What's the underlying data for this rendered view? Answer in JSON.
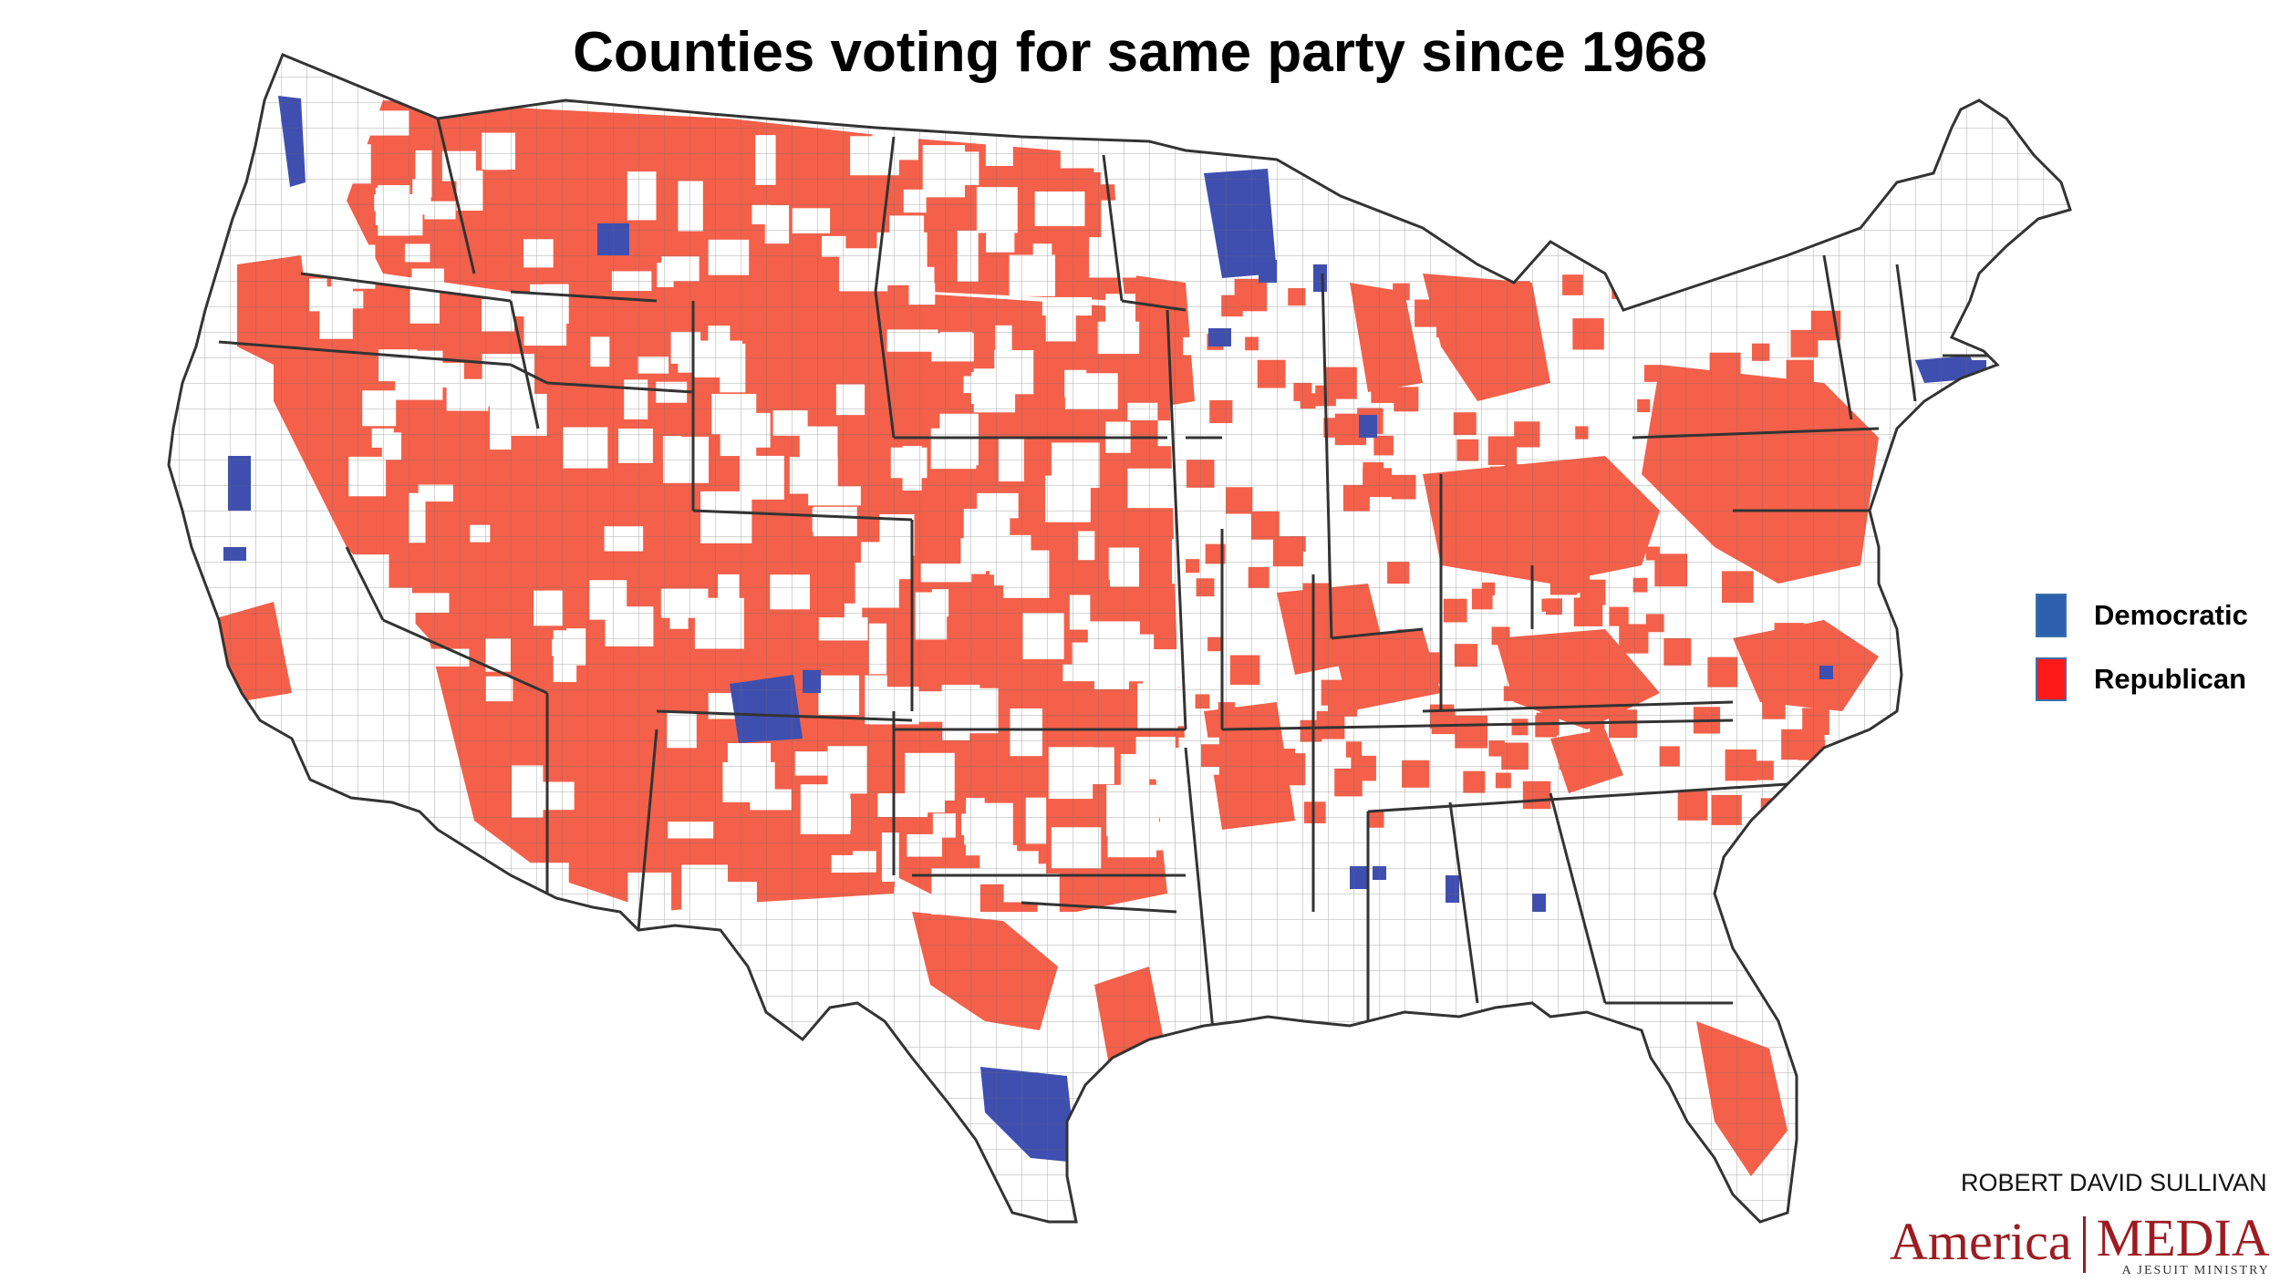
{
  "title": "Counties voting for same party since 1968",
  "legend": {
    "items": [
      {
        "label": "Democratic",
        "color": "#2c5fad"
      },
      {
        "label": "Republican",
        "color": "#ff1a1a"
      }
    ]
  },
  "colors": {
    "republican_fill": "#f4604a",
    "democratic_fill": "#3f4fb0",
    "county_stroke": "#555555",
    "state_stroke": "#333333"
  },
  "byline": "ROBERT DAVID SULLIVAN",
  "logo": {
    "left": "America",
    "right": "MEDIA",
    "tagline": "A JESUIT MINISTRY"
  }
}
